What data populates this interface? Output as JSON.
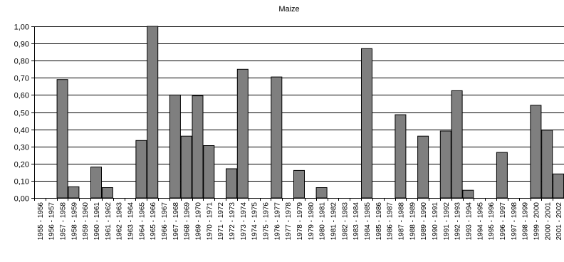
{
  "chart_data": {
    "type": "bar",
    "title": "Maize",
    "xlabel": "",
    "ylabel": "",
    "ylim": [
      0,
      1.0
    ],
    "yticks": [
      "0,00",
      "0,10",
      "0,20",
      "0,30",
      "0,40",
      "0,50",
      "0,60",
      "0,70",
      "0,80",
      "0,90",
      "1,00"
    ],
    "grid": true,
    "legend": "none",
    "bar_color": "#7f7f7f",
    "categories": [
      "1955 - 1956",
      "1956 - 1957",
      "1957 - 1958",
      "1958 - 1959",
      "1959 - 1960",
      "1960 - 1961",
      "1961 - 1962",
      "1962 - 1963",
      "1963 - 1964",
      "1964 - 1965",
      "1965 - 1966",
      "1966 - 1967",
      "1967 - 1968",
      "1968 - 1969",
      "1969 - 1970",
      "1970 - 1971",
      "1971 - 1972",
      "1972 - 1973",
      "1973 - 1974",
      "1974 - 1975",
      "1975 - 1976",
      "1976 - 1977",
      "1977 - 1978",
      "1978 - 1979",
      "1979 - 1980",
      "1980 - 1981",
      "1981 - 1982",
      "1982 - 1983",
      "1983 - 1984",
      "1984 - 1985",
      "1985 - 1986",
      "1986 - 1987",
      "1987 - 1988",
      "1988 - 1989",
      "1989 - 1990",
      "1990 - 1991",
      "1991 - 1992",
      "1992 - 1993",
      "1993 - 1994",
      "1994 - 1995",
      "1995 - 1996",
      "1996 - 1997",
      "1997 - 1998",
      "1998 - 1999",
      "1999 - 2000",
      "2000 - 2001",
      "2001 - 2002"
    ],
    "values": [
      0,
      0,
      0.69,
      0.065,
      0,
      0.18,
      0.06,
      0,
      0,
      0.335,
      1.0,
      0,
      0.6,
      0.36,
      0.595,
      0.305,
      0,
      0.17,
      0.75,
      0,
      0,
      0.705,
      0,
      0.16,
      0,
      0.06,
      0,
      0,
      0,
      0.87,
      0,
      0,
      0.485,
      0,
      0.36,
      0,
      0.39,
      0.625,
      0.045,
      0,
      0,
      0.265,
      0,
      0,
      0.54,
      0.395,
      0.14
    ]
  }
}
